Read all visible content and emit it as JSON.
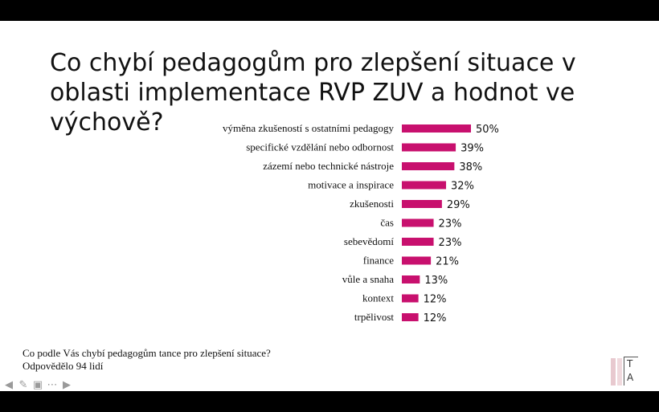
{
  "slide": {
    "title": "Co chybí pedagogům pro zlepšení situace v oblasti implementace RVP ZUV a hodnot ve výchově?",
    "footnote_question": "Co podle Vás chybí pedagogům tance pro zlepšení situace?",
    "footnote_count": "Odpovědělo 94 lidí",
    "logo_letters": [
      "T",
      "A"
    ]
  },
  "chart_data": {
    "type": "bar",
    "orientation": "horizontal",
    "categories": [
      "výměna zkušeností s ostatními pedagogy",
      "specifické vzdělání nebo odbornost",
      "zázemí nebo technické nástroje",
      "motivace a inspirace",
      "zkušenosti",
      "čas",
      "sebevědomí",
      "finance",
      "vůle a snaha",
      "kontext",
      "trpělivost"
    ],
    "values": [
      50,
      39,
      38,
      32,
      29,
      23,
      23,
      21,
      13,
      12,
      12
    ],
    "value_labels": [
      "50%",
      "39%",
      "38%",
      "32%",
      "29%",
      "23%",
      "23%",
      "21%",
      "13%",
      "12%",
      "12%"
    ],
    "unit": "%",
    "bar_color": "#c8106e",
    "grid": false,
    "legend": "none"
  },
  "toolbar": {
    "icons": [
      "arrow-left-icon",
      "pen-icon",
      "slides-icon",
      "more-icon",
      "arrow-right-icon"
    ]
  }
}
